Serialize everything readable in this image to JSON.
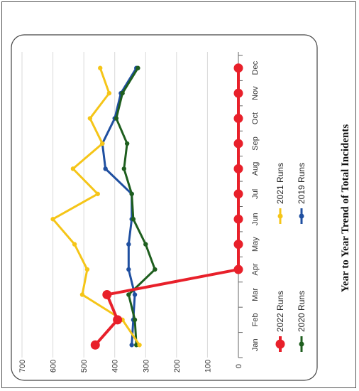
{
  "chart_data": {
    "type": "line",
    "title": "Year to Year Trend of Total Incidents",
    "categories": [
      "Jan",
      "Feb",
      "Mar",
      "Apr",
      "May",
      "Jun",
      "Jul",
      "Aug",
      "Sep",
      "Oct",
      "Nov",
      "Dec"
    ],
    "ylim": [
      0,
      700
    ],
    "yticks": [
      0,
      100,
      200,
      300,
      400,
      500,
      600,
      700
    ],
    "grid": true,
    "legend_position": "bottom",
    "orientation": "rotated-90-clockwise",
    "series": [
      {
        "name": "2022 Runs",
        "color": "#e8202a",
        "values": [
          463,
          391,
          425,
          0,
          0,
          0,
          0,
          0,
          0,
          0,
          0,
          0
        ]
      },
      {
        "name": "2021 Runs",
        "color": "#f5c518",
        "values": [
          320,
          375,
          505,
          489,
          530,
          600,
          455,
          535,
          440,
          480,
          418,
          447
        ]
      },
      {
        "name": "2020 Runs",
        "color": "#1e5e1e",
        "values": [
          330,
          335,
          355,
          270,
          300,
          340,
          345,
          370,
          360,
          395,
          375,
          325
        ]
      },
      {
        "name": "2019 Runs",
        "color": "#1f4fa0",
        "values": [
          345,
          340,
          335,
          355,
          355,
          345,
          345,
          430,
          440,
          400,
          380,
          330
        ]
      }
    ]
  }
}
